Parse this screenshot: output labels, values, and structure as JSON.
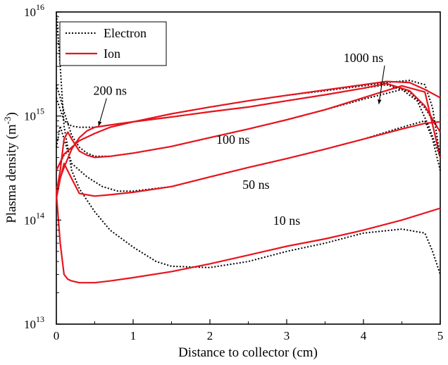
{
  "chart_data": {
    "type": "line",
    "xlabel": "Distance to collector (cm)",
    "ylabel": {
      "base": "Plasma density (m",
      "sup": "-3",
      "close": ")"
    },
    "xlim": [
      0,
      5
    ],
    "ylim": [
      10000000000000.0,
      1e+16
    ],
    "yscale": "log",
    "x_ticks": [
      "0",
      "1",
      "2",
      "3",
      "4",
      "5"
    ],
    "y_ticks": [
      {
        "value": 10000000000000.0,
        "mantissa": "10",
        "exp": "13"
      },
      {
        "value": 100000000000000.0,
        "mantissa": "10",
        "exp": "14"
      },
      {
        "value": 1000000000000000.0,
        "mantissa": "10",
        "exp": "15"
      },
      {
        "value": 1e+16,
        "mantissa": "10",
        "exp": "16"
      }
    ],
    "grid": false,
    "legend": {
      "placement": "top-left",
      "entries": [
        {
          "label": "Electron",
          "style": "dotted",
          "color": "#000000"
        },
        {
          "label": "Ion",
          "style": "solid",
          "color": "#e8141e"
        }
      ]
    },
    "annotations": [
      {
        "text": "10 ns",
        "x": 3.0,
        "y": 90000000000000.0
      },
      {
        "text": "50 ns",
        "x": 2.6,
        "y": 200000000000000.0
      },
      {
        "text": "100 ns",
        "x": 2.3,
        "y": 540000000000000.0
      },
      {
        "text": "200 ns",
        "x": 0.7,
        "y": 1600000000000000.0,
        "arrow_to": {
          "x": 0.55,
          "y": 800000000000000.0
        }
      },
      {
        "text": "1000 ns",
        "x": 4.0,
        "y": 3300000000000000.0,
        "arrow_to": {
          "x": 4.2,
          "y": 1300000000000000.0
        }
      }
    ],
    "series": [
      {
        "name": "10 ns",
        "species": "Electron",
        "x": [
          0,
          0.05,
          0.1,
          0.2,
          0.3,
          0.5,
          0.7,
          1.0,
          1.3,
          1.5,
          2.0,
          2.5,
          3.0,
          3.5,
          4.0,
          4.5,
          4.8,
          4.9,
          5.0
        ],
        "y": [
          1e+16,
          3000000000000000.0,
          800000000000000.0,
          300000000000000.0,
          200000000000000.0,
          120000000000000.0,
          80000000000000.0,
          55000000000000.0,
          40000000000000.0,
          36000000000000.0,
          35000000000000.0,
          40000000000000.0,
          50000000000000.0,
          60000000000000.0,
          75000000000000.0,
          82000000000000.0,
          75000000000000.0,
          50000000000000.0,
          30000000000000.0
        ]
      },
      {
        "name": "10 ns",
        "species": "Ion",
        "x": [
          0,
          0.05,
          0.1,
          0.15,
          0.2,
          0.3,
          0.5,
          0.7,
          1.0,
          1.5,
          2.0,
          2.5,
          3.0,
          3.5,
          4.0,
          4.5,
          5.0
        ],
        "y": [
          180000000000000.0,
          60000000000000.0,
          30000000000000.0,
          27000000000000.0,
          26000000000000.0,
          25000000000000.0,
          25000000000000.0,
          26000000000000.0,
          28000000000000.0,
          32000000000000.0,
          38000000000000.0,
          46000000000000.0,
          56000000000000.0,
          66000000000000.0,
          80000000000000.0,
          100000000000000.0,
          130000000000000.0
        ]
      },
      {
        "name": "50 ns",
        "species": "Electron",
        "x": [
          0,
          0.05,
          0.1,
          0.2,
          0.4,
          0.6,
          0.8,
          1.0,
          1.5,
          2.0,
          2.5,
          3.0,
          3.5,
          4.0,
          4.5,
          4.8,
          4.9,
          5.0
        ],
        "y": [
          500000000000000.0,
          800000000000000.0,
          600000000000000.0,
          350000000000000.0,
          260000000000000.0,
          210000000000000.0,
          190000000000000.0,
          190000000000000.0,
          210000000000000.0,
          260000000000000.0,
          320000000000000.0,
          390000000000000.0,
          480000000000000.0,
          600000000000000.0,
          780000000000000.0,
          900000000000000.0,
          600000000000000.0,
          300000000000000.0
        ]
      },
      {
        "name": "50 ns",
        "species": "Ion",
        "x": [
          0,
          0.05,
          0.1,
          0.2,
          0.3,
          0.5,
          0.7,
          1.0,
          1.5,
          2.0,
          2.5,
          3.0,
          3.5,
          4.0,
          4.5,
          4.8,
          5.0
        ],
        "y": [
          160000000000000.0,
          250000000000000.0,
          350000000000000.0,
          250000000000000.0,
          180000000000000.0,
          170000000000000.0,
          175000000000000.0,
          185000000000000.0,
          210000000000000.0,
          260000000000000.0,
          320000000000000.0,
          390000000000000.0,
          480000000000000.0,
          600000000000000.0,
          750000000000000.0,
          850000000000000.0,
          880000000000000.0
        ]
      },
      {
        "name": "100 ns",
        "species": "Electron",
        "x": [
          0,
          0.05,
          0.1,
          0.2,
          0.3,
          0.4,
          0.5,
          0.7,
          1.0,
          1.5,
          2.0,
          2.5,
          3.0,
          3.5,
          4.0,
          4.5,
          4.7,
          4.85,
          5.0
        ],
        "y": [
          2000000000000000.0,
          1500000000000000.0,
          1100000000000000.0,
          650000000000000.0,
          500000000000000.0,
          440000000000000.0,
          410000000000000.0,
          410000000000000.0,
          440000000000000.0,
          510000000000000.0,
          620000000000000.0,
          750000000000000.0,
          920000000000000.0,
          1150000000000000.0,
          1450000000000000.0,
          1800000000000000.0,
          1400000000000000.0,
          800000000000000.0,
          400000000000000.0
        ]
      },
      {
        "name": "100 ns",
        "species": "Ion",
        "x": [
          0,
          0.05,
          0.1,
          0.15,
          0.2,
          0.3,
          0.4,
          0.5,
          0.7,
          1.0,
          1.5,
          2.0,
          2.5,
          3.0,
          3.5,
          4.0,
          4.5,
          4.8,
          5.0
        ],
        "y": [
          180000000000000.0,
          300000000000000.0,
          600000000000000.0,
          700000000000000.0,
          600000000000000.0,
          460000000000000.0,
          420000000000000.0,
          400000000000000.0,
          410000000000000.0,
          440000000000000.0,
          510000000000000.0,
          620000000000000.0,
          750000000000000.0,
          920000000000000.0,
          1150000000000000.0,
          1500000000000000.0,
          1950000000000000.0,
          1700000000000000.0,
          400000000000000.0
        ]
      },
      {
        "name": "200 ns",
        "species": "Electron",
        "x": [
          0,
          0.1,
          0.2,
          0.3,
          0.4,
          0.5,
          0.6,
          0.8,
          1.0,
          1.5,
          2.0,
          2.5,
          3.0,
          3.5,
          4.0,
          4.3,
          4.6,
          4.8,
          5.0
        ],
        "y": [
          1500000000000000.0,
          900000000000000.0,
          800000000000000.0,
          780000000000000.0,
          780000000000000.0,
          780000000000000.0,
          800000000000000.0,
          840000000000000.0,
          880000000000000.0,
          980000000000000.0,
          1100000000000000.0,
          1220000000000000.0,
          1400000000000000.0,
          1600000000000000.0,
          1850000000000000.0,
          2000000000000000.0,
          1700000000000000.0,
          1200000000000000.0,
          700000000000000.0
        ]
      },
      {
        "name": "200 ns",
        "species": "Ion",
        "x": [
          0,
          0.1,
          0.2,
          0.3,
          0.4,
          0.5,
          0.6,
          0.8,
          1.0,
          1.5,
          2.0,
          2.5,
          3.0,
          3.5,
          4.0,
          4.3,
          4.6,
          4.8,
          5.0
        ],
        "y": [
          200000000000000.0,
          320000000000000.0,
          480000000000000.0,
          620000000000000.0,
          720000000000000.0,
          780000000000000.0,
          800000000000000.0,
          840000000000000.0,
          880000000000000.0,
          980000000000000.0,
          1100000000000000.0,
          1220000000000000.0,
          1400000000000000.0,
          1600000000000000.0,
          1850000000000000.0,
          2050000000000000.0,
          1750000000000000.0,
          1250000000000000.0,
          700000000000000.0
        ]
      },
      {
        "name": "1000 ns",
        "species": "Electron",
        "x": [
          0,
          0.1,
          0.2,
          0.3,
          0.5,
          0.7,
          1.0,
          1.5,
          2.0,
          2.5,
          3.0,
          3.5,
          4.0,
          4.3,
          4.6,
          4.8,
          4.9,
          5.0
        ],
        "y": [
          300000000000000.0,
          420000000000000.0,
          500000000000000.0,
          580000000000000.0,
          680000000000000.0,
          780000000000000.0,
          880000000000000.0,
          1050000000000000.0,
          1220000000000000.0,
          1400000000000000.0,
          1580000000000000.0,
          1750000000000000.0,
          1950000000000000.0,
          2100000000000000.0,
          2200000000000000.0,
          2000000000000000.0,
          1200000000000000.0,
          400000000000000.0
        ]
      },
      {
        "name": "1000 ns",
        "species": "Ion",
        "x": [
          0,
          0.1,
          0.2,
          0.3,
          0.5,
          0.7,
          1.0,
          1.5,
          2.0,
          2.5,
          3.0,
          3.5,
          4.0,
          4.3,
          4.6,
          4.8,
          5.0
        ],
        "y": [
          300000000000000.0,
          430000000000000.0,
          500000000000000.0,
          580000000000000.0,
          680000000000000.0,
          780000000000000.0,
          880000000000000.0,
          1050000000000000.0,
          1220000000000000.0,
          1400000000000000.0,
          1580000000000000.0,
          1780000000000000.0,
          2000000000000000.0,
          2150000000000000.0,
          2100000000000000.0,
          1800000000000000.0,
          1500000000000000.0
        ]
      }
    ]
  }
}
